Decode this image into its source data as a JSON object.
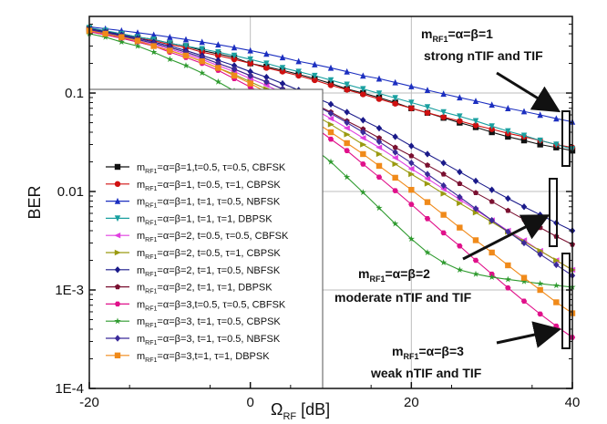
{
  "chart_data": {
    "type": "line",
    "xlabel": "Ω",
    "xlabel_sub": "RF",
    "xlabel_unit": " [dB]",
    "ylabel": "BER",
    "xlim": [
      -20,
      40
    ],
    "ylim": [
      0.0001,
      0.6
    ],
    "yscale": "log",
    "grid": true,
    "x_ticks": [
      -20,
      0,
      20,
      40
    ],
    "x_tick_labels": [
      "-20",
      "0",
      "20",
      "40"
    ],
    "y_ticks": [
      0.0001,
      0.001,
      0.01,
      0.1
    ],
    "y_tick_labels": [
      "1E-4",
      "1E-3",
      "0.01",
      "0.1"
    ],
    "legend_position": "lower-left",
    "x": [
      -20,
      -18,
      -16,
      -14,
      -12,
      -10,
      -8,
      -6,
      -4,
      -2,
      0,
      2,
      4,
      6,
      8,
      10,
      12,
      14,
      16,
      18,
      20,
      22,
      24,
      26,
      28,
      30,
      32,
      34,
      36,
      38,
      40
    ],
    "series": [
      {
        "name": "m_RF1=α=β=1,t=0.5, τ=0.5, CBFSK",
        "color": "#111111",
        "marker": "square",
        "values": [
          0.45,
          0.42,
          0.4,
          0.37,
          0.35,
          0.32,
          0.3,
          0.27,
          0.25,
          0.23,
          0.2,
          0.185,
          0.17,
          0.155,
          0.14,
          0.125,
          0.11,
          0.1,
          0.09,
          0.08,
          0.07,
          0.063,
          0.056,
          0.05,
          0.045,
          0.04,
          0.036,
          0.033,
          0.03,
          0.028,
          0.026
        ]
      },
      {
        "name": "m_RF1=α=β=1, t=0.5, τ=1, CBPSK",
        "color": "#d01010",
        "marker": "circle",
        "values": [
          0.45,
          0.42,
          0.39,
          0.36,
          0.34,
          0.31,
          0.29,
          0.26,
          0.24,
          0.22,
          0.2,
          0.18,
          0.165,
          0.15,
          0.135,
          0.12,
          0.108,
          0.097,
          0.087,
          0.078,
          0.07,
          0.063,
          0.057,
          0.052,
          0.047,
          0.043,
          0.039,
          0.036,
          0.033,
          0.03,
          0.028
        ]
      },
      {
        "name": "m_RF1=α=β=1, t=1, τ=0.5, NBFSK",
        "color": "#1c2fc0",
        "marker": "triangle-up",
        "values": [
          0.47,
          0.45,
          0.43,
          0.41,
          0.39,
          0.37,
          0.35,
          0.33,
          0.31,
          0.29,
          0.27,
          0.25,
          0.23,
          0.21,
          0.195,
          0.18,
          0.165,
          0.15,
          0.14,
          0.128,
          0.117,
          0.107,
          0.098,
          0.09,
          0.083,
          0.076,
          0.07,
          0.065,
          0.06,
          0.055,
          0.051
        ]
      },
      {
        "name": "m_RF1=α=β=1, t=1, τ=1, DBPSK",
        "color": "#1aa0a0",
        "marker": "triangle-down",
        "values": [
          0.46,
          0.43,
          0.4,
          0.37,
          0.35,
          0.32,
          0.3,
          0.28,
          0.26,
          0.24,
          0.22,
          0.2,
          0.18,
          0.165,
          0.15,
          0.135,
          0.122,
          0.11,
          0.099,
          0.089,
          0.08,
          0.072,
          0.064,
          0.058,
          0.052,
          0.046,
          0.041,
          0.037,
          0.033,
          0.03,
          0.027
        ]
      },
      {
        "name": "m_RF1=α=β=2, t=0.5, τ=0.5, CBFSK",
        "color": "#e040e0",
        "marker": "triangle-left",
        "values": [
          0.43,
          0.4,
          0.37,
          0.34,
          0.31,
          0.28,
          0.25,
          0.22,
          0.19,
          0.165,
          0.14,
          0.12,
          0.1,
          0.083,
          0.068,
          0.055,
          0.044,
          0.035,
          0.028,
          0.022,
          0.017,
          0.0135,
          0.0106,
          0.0083,
          0.0065,
          0.0051,
          0.004,
          0.0032,
          0.0025,
          0.002,
          0.0016
        ]
      },
      {
        "name": "m_RF1=α=β=2, t=0.5, τ=1, CBPSK",
        "color": "#9a9a10",
        "marker": "triangle-right",
        "values": [
          0.42,
          0.39,
          0.36,
          0.33,
          0.3,
          0.27,
          0.24,
          0.21,
          0.18,
          0.155,
          0.13,
          0.11,
          0.09,
          0.074,
          0.06,
          0.048,
          0.038,
          0.03,
          0.024,
          0.019,
          0.015,
          0.012,
          0.0095,
          0.0076,
          0.0061,
          0.0049,
          0.0039,
          0.0031,
          0.0025,
          0.002,
          0.0016
        ]
      },
      {
        "name": "m_RF1=α=β=2, t=1, τ=0.5, NBFSK",
        "color": "#1a1a8a",
        "marker": "diamond",
        "values": [
          0.45,
          0.42,
          0.39,
          0.36,
          0.33,
          0.3,
          0.27,
          0.24,
          0.215,
          0.19,
          0.165,
          0.145,
          0.125,
          0.107,
          0.091,
          0.077,
          0.064,
          0.053,
          0.044,
          0.036,
          0.029,
          0.024,
          0.0195,
          0.0158,
          0.0128,
          0.0104,
          0.0085,
          0.007,
          0.0058,
          0.0048,
          0.004
        ]
      },
      {
        "name": "m_RF1=α=β=2, t=1, τ=1, DBPSK",
        "color": "#7a1030",
        "marker": "pentagon",
        "values": [
          0.44,
          0.41,
          0.38,
          0.35,
          0.32,
          0.29,
          0.26,
          0.23,
          0.2,
          0.175,
          0.15,
          0.13,
          0.11,
          0.092,
          0.077,
          0.064,
          0.052,
          0.043,
          0.035,
          0.028,
          0.023,
          0.0185,
          0.015,
          0.012,
          0.0097,
          0.0079,
          0.0064,
          0.0052,
          0.0043,
          0.0035,
          0.0029
        ]
      },
      {
        "name": "m_RF1=α=β=3,t=0.5, τ=0.5, CBFSK",
        "color": "#e0108a",
        "marker": "hexagon",
        "values": [
          0.42,
          0.39,
          0.36,
          0.33,
          0.3,
          0.26,
          0.23,
          0.2,
          0.17,
          0.14,
          0.115,
          0.093,
          0.074,
          0.058,
          0.045,
          0.034,
          0.026,
          0.019,
          0.014,
          0.0102,
          0.0074,
          0.0053,
          0.0038,
          0.0028,
          0.002,
          0.00145,
          0.00105,
          0.00077,
          0.00057,
          0.00043,
          0.00033
        ]
      },
      {
        "name": "m_RF1=α=β=3, t=1, τ=0.5, CBPSK",
        "color": "#2e9a2e",
        "marker": "star",
        "values": [
          0.4,
          0.37,
          0.33,
          0.3,
          0.26,
          0.22,
          0.19,
          0.16,
          0.13,
          0.105,
          0.083,
          0.064,
          0.049,
          0.037,
          0.027,
          0.02,
          0.014,
          0.0098,
          0.0068,
          0.0047,
          0.0033,
          0.0024,
          0.0019,
          0.0016,
          0.00145,
          0.00135,
          0.00128,
          0.00122,
          0.00116,
          0.00111,
          0.00107
        ]
      },
      {
        "name": "m_RF1=α=β=3, t=1, τ=0.5, NBFSK",
        "color": "#3a2a9a",
        "marker": "diamond",
        "values": [
          0.44,
          0.41,
          0.38,
          0.35,
          0.32,
          0.29,
          0.26,
          0.23,
          0.2,
          0.175,
          0.15,
          0.13,
          0.11,
          0.092,
          0.076,
          0.062,
          0.05,
          0.04,
          0.032,
          0.025,
          0.0195,
          0.015,
          0.0115,
          0.0088,
          0.0067,
          0.0051,
          0.0039,
          0.003,
          0.0023,
          0.0018,
          0.0014
        ]
      },
      {
        "name": "m_RF1=α=β=3,t=1, τ=1, DBPSK",
        "color": "#f08a1a",
        "marker": "square",
        "values": [
          0.43,
          0.4,
          0.37,
          0.34,
          0.3,
          0.27,
          0.24,
          0.21,
          0.18,
          0.15,
          0.125,
          0.102,
          0.082,
          0.065,
          0.051,
          0.04,
          0.031,
          0.024,
          0.0182,
          0.0138,
          0.0104,
          0.0078,
          0.0058,
          0.0043,
          0.0032,
          0.0024,
          0.00178,
          0.00133,
          0.001,
          0.00075,
          0.00058
        ]
      }
    ],
    "annotations": [
      {
        "line1_main": "m",
        "line1_sub": "RF1",
        "line1_rest": "=α=β=1",
        "line2": "strong nTIF and TIF"
      },
      {
        "line1_main": "m",
        "line1_sub": "RF1",
        "line1_rest": "=α=β=2",
        "line2": "moderate nTIF and TIF"
      },
      {
        "line1_main": "m",
        "line1_sub": "RF1",
        "line1_rest": "=α=β=3",
        "line2": "weak nTIF and TIF"
      }
    ]
  }
}
